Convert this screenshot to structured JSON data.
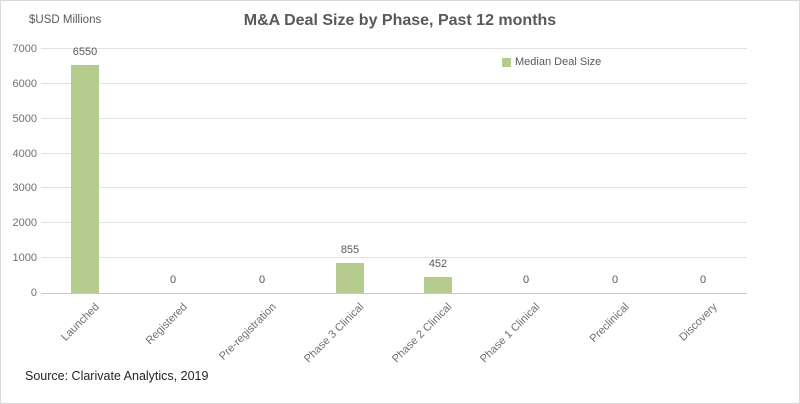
{
  "chart_data": {
    "type": "bar",
    "title": "M&A Deal Size by Phase, Past 12 months",
    "categories": [
      "Launched",
      "Registered",
      "Pre-registration",
      "Phase 3 Clinical",
      "Phase 2 Clinical",
      "Phase 1 Clinical",
      "Preclinical",
      "Discovery"
    ],
    "series": [
      {
        "name": "Median Deal Size",
        "values": [
          6550,
          0,
          0,
          855,
          452,
          0,
          0,
          0
        ]
      }
    ],
    "xlabel": "",
    "ylabel": "$USD Millions",
    "ylim": [
      0,
      7000
    ],
    "ytick_step": 1000,
    "grid": true,
    "legend_position": "inside-top-right",
    "show_data_labels": true,
    "x_label_rotation_deg": 45,
    "source": "Source: Clarivate Analytics, 2019"
  },
  "colors": {
    "bar": "#b5cc8e",
    "title_text": "#595959",
    "label_text": "#595959",
    "axis_text": "#707070",
    "gridline": "#e2e2e2",
    "axis_line": "#c8c8c8",
    "source_text": "#262626",
    "frame_border": "#d9d9d9",
    "background": "#ffffff"
  }
}
